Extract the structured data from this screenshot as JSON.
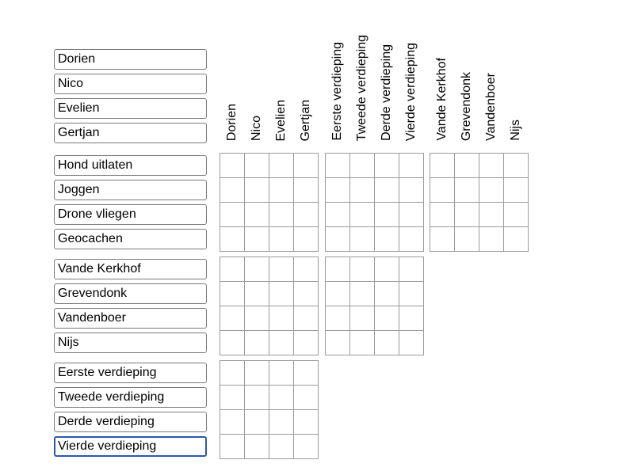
{
  "row_groups": [
    [
      "Dorien",
      "Nico",
      "Evelien",
      "Gertjan"
    ],
    [
      "Hond uitlaten",
      "Joggen",
      "Drone vliegen",
      "Geocachen"
    ],
    [
      "Vande Kerkhof",
      "Grevendonk",
      "Vandenboer",
      "Nijs"
    ],
    [
      "Eerste verdieping",
      "Tweede verdieping",
      "Derde verdieping",
      "Vierde verdieping"
    ]
  ],
  "column_groups": [
    [
      "Dorien",
      "Nico",
      "Evelien",
      "Gertjan"
    ],
    [
      "Eerste verdieping",
      "Tweede verdieping",
      "Derde verdieping",
      "Vierde verdieping"
    ],
    [
      "Vande Kerkhof",
      "Grevendonk",
      "Vandenboer",
      "Nijs"
    ]
  ],
  "focused_field": "Vierde verdieping",
  "colors": {
    "focus_border": "#2a57b0",
    "grid_line": "#9a9a9a"
  }
}
